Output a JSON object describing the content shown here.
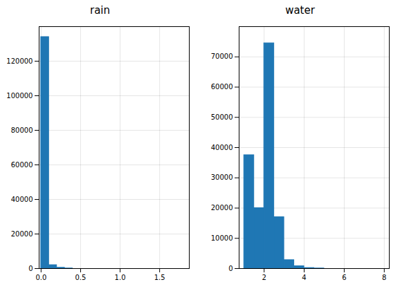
{
  "chart_data": [
    {
      "type": "histogram",
      "title": "rain",
      "bins": [
        0.0,
        0.1,
        0.2,
        0.3,
        0.4
      ],
      "values": [
        134000,
        2000,
        500,
        100
      ],
      "color": "#1f77b4",
      "xlim": [
        -0.025,
        1.875
      ],
      "ylim": [
        0,
        140000
      ],
      "xticks": [
        {
          "value": 0,
          "label": "0.0"
        },
        0.5,
        {
          "value": 1,
          "label": "1.0"
        },
        1.5
      ],
      "yticks": [
        0,
        20000,
        40000,
        60000,
        80000,
        100000,
        120000
      ],
      "grid": true
    },
    {
      "type": "histogram",
      "title": "water",
      "bins": [
        1.0,
        1.5,
        2.0,
        2.5,
        3.0,
        3.5,
        4.0,
        4.5,
        5.0
      ],
      "values": [
        37500,
        20000,
        74500,
        17000,
        2800,
        800,
        200,
        50
      ],
      "color": "#1f77b4",
      "xlim": [
        0.75,
        8.25
      ],
      "ylim": [
        0,
        80000
      ],
      "xticks": [
        2,
        4,
        6,
        8
      ],
      "yticks": [
        0,
        10000,
        20000,
        30000,
        40000,
        50000,
        60000,
        70000
      ],
      "grid": true
    }
  ]
}
